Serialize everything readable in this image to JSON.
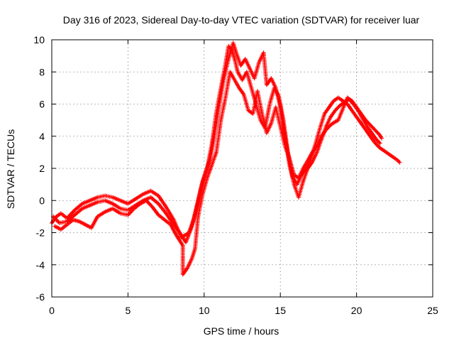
{
  "chart_data": {
    "type": "scatter",
    "title": "Day 316 of 2023, Sidereal Day-to-day VTEC variation (SDTVAR) for receiver luar",
    "xlabel": "GPS time / hours",
    "ylabel": "SDTVAR / TECUs",
    "xlim": [
      0,
      25
    ],
    "ylim": [
      -6,
      10
    ],
    "xticks": [
      0,
      5,
      10,
      15,
      20,
      25
    ],
    "yticks": [
      -6,
      -4,
      -2,
      0,
      2,
      4,
      6,
      8,
      10
    ],
    "grid": true,
    "marker": "+",
    "color": "#ff0000",
    "series": [
      {
        "values": [
          [
            0.0,
            -1.4
          ],
          [
            0.3,
            -1.0
          ],
          [
            0.6,
            -0.8
          ],
          [
            1.0,
            -1.1
          ],
          [
            1.5,
            -0.6
          ],
          [
            2.0,
            -0.2
          ],
          [
            2.5,
            0.0
          ],
          [
            3.0,
            0.2
          ],
          [
            3.5,
            0.3
          ],
          [
            4.0,
            0.2
          ],
          [
            4.5,
            0.0
          ],
          [
            5.0,
            -0.2
          ],
          [
            5.5,
            0.1
          ],
          [
            6.0,
            0.4
          ],
          [
            6.5,
            0.6
          ],
          [
            7.0,
            0.3
          ],
          [
            7.5,
            -0.4
          ],
          [
            8.0,
            -1.2
          ],
          [
            8.5,
            -2.3
          ],
          [
            9.0,
            -2.0
          ],
          [
            9.3,
            -1.2
          ],
          [
            9.6,
            0.0
          ],
          [
            9.9,
            1.2
          ],
          [
            10.2,
            2.0
          ],
          [
            10.5,
            3.5
          ],
          [
            10.8,
            5.5
          ],
          [
            11.1,
            7.0
          ],
          [
            11.4,
            8.5
          ],
          [
            11.6,
            9.6
          ],
          [
            11.8,
            9.4
          ],
          [
            12.0,
            8.8
          ],
          [
            12.2,
            8.0
          ],
          [
            12.5,
            7.5
          ],
          [
            12.8,
            8.0
          ],
          [
            13.1,
            7.0
          ],
          [
            13.4,
            6.0
          ],
          [
            13.7,
            5.0
          ],
          [
            14.0,
            4.5
          ],
          [
            14.3,
            6.0
          ],
          [
            14.6,
            7.0
          ],
          [
            14.9,
            6.5
          ],
          [
            15.2,
            5.0
          ],
          [
            15.5,
            3.0
          ],
          [
            15.8,
            1.5
          ],
          [
            16.1,
            1.0
          ],
          [
            16.4,
            1.6
          ],
          [
            16.7,
            2.0
          ],
          [
            17.0,
            2.6
          ],
          [
            17.3,
            3.5
          ],
          [
            17.6,
            4.5
          ],
          [
            17.9,
            5.4
          ],
          [
            18.2,
            5.8
          ],
          [
            18.5,
            6.2
          ],
          [
            18.8,
            6.4
          ],
          [
            19.1,
            6.2
          ],
          [
            19.4,
            6.0
          ],
          [
            19.7,
            5.6
          ],
          [
            20.0,
            5.2
          ],
          [
            20.3,
            4.8
          ],
          [
            20.6,
            4.4
          ],
          [
            20.9,
            4.0
          ],
          [
            21.2,
            3.6
          ],
          [
            21.5,
            3.3
          ],
          [
            21.8,
            3.1
          ],
          [
            22.1,
            2.9
          ],
          [
            22.4,
            2.7
          ],
          [
            22.7,
            2.5
          ],
          [
            22.9,
            2.3
          ]
        ]
      },
      {
        "values": [
          [
            0.1,
            -1.0
          ],
          [
            0.5,
            -1.4
          ],
          [
            1.0,
            -1.3
          ],
          [
            1.5,
            -0.9
          ],
          [
            2.0,
            -0.5
          ],
          [
            2.5,
            -0.3
          ],
          [
            3.0,
            -0.1
          ],
          [
            3.5,
            0.0
          ],
          [
            4.0,
            -0.2
          ],
          [
            4.5,
            -0.5
          ],
          [
            5.0,
            -0.6
          ],
          [
            5.5,
            -0.3
          ],
          [
            6.0,
            0.0
          ],
          [
            6.5,
            0.2
          ],
          [
            7.0,
            -0.2
          ],
          [
            7.5,
            -0.8
          ],
          [
            8.0,
            -1.5
          ],
          [
            8.4,
            -2.0
          ],
          [
            8.8,
            -2.6
          ],
          [
            9.2,
            -1.6
          ],
          [
            9.5,
            -0.5
          ],
          [
            9.8,
            0.8
          ],
          [
            10.1,
            1.8
          ],
          [
            10.4,
            2.6
          ],
          [
            10.7,
            4.2
          ],
          [
            11.0,
            6.0
          ],
          [
            11.3,
            7.6
          ],
          [
            11.6,
            8.8
          ],
          [
            11.9,
            9.8
          ],
          [
            12.1,
            9.2
          ],
          [
            12.4,
            8.4
          ],
          [
            12.7,
            8.8
          ],
          [
            13.0,
            8.2
          ],
          [
            13.3,
            7.6
          ],
          [
            13.6,
            8.6
          ],
          [
            13.9,
            9.2
          ],
          [
            14.1,
            7.2
          ],
          [
            14.4,
            7.6
          ],
          [
            14.7,
            7.0
          ],
          [
            15.0,
            5.8
          ],
          [
            15.3,
            4.0
          ],
          [
            15.6,
            2.2
          ],
          [
            15.9,
            1.0
          ],
          [
            16.2,
            0.2
          ],
          [
            16.5,
            1.2
          ],
          [
            16.8,
            2.0
          ],
          [
            17.1,
            2.4
          ],
          [
            17.4,
            3.0
          ],
          [
            17.7,
            3.8
          ],
          [
            18.0,
            4.6
          ],
          [
            18.3,
            5.2
          ],
          [
            18.6,
            5.6
          ],
          [
            18.9,
            5.9
          ],
          [
            19.2,
            6.1
          ],
          [
            19.5,
            6.3
          ],
          [
            19.8,
            6.0
          ],
          [
            20.1,
            5.6
          ],
          [
            20.4,
            5.1
          ],
          [
            20.7,
            4.6
          ],
          [
            21.0,
            4.2
          ],
          [
            21.3,
            3.8
          ],
          [
            21.6,
            3.5
          ]
        ]
      },
      {
        "values": [
          [
            0.2,
            -1.6
          ],
          [
            0.6,
            -1.8
          ],
          [
            1.0,
            -1.5
          ],
          [
            1.4,
            -1.2
          ],
          [
            1.8,
            -1.3
          ],
          [
            2.2,
            -1.5
          ],
          [
            2.6,
            -1.7
          ],
          [
            3.0,
            -1.0
          ],
          [
            3.5,
            -0.7
          ],
          [
            4.0,
            -0.5
          ],
          [
            4.5,
            -0.8
          ],
          [
            5.0,
            -0.9
          ],
          [
            5.4,
            -0.5
          ],
          [
            5.8,
            -0.2
          ],
          [
            6.2,
            0.0
          ],
          [
            6.6,
            -0.4
          ],
          [
            7.0,
            -0.9
          ],
          [
            7.4,
            -1.2
          ],
          [
            7.8,
            -1.5
          ],
          [
            8.2,
            -2.2
          ],
          [
            8.6,
            -2.8
          ],
          [
            8.6,
            -4.6
          ],
          [
            8.9,
            -4.2
          ],
          [
            9.2,
            -3.6
          ],
          [
            9.4,
            -3.0
          ],
          [
            9.6,
            -1.0
          ],
          [
            9.9,
            0.4
          ],
          [
            10.2,
            1.4
          ],
          [
            10.5,
            2.2
          ],
          [
            10.8,
            3.0
          ],
          [
            11.1,
            5.0
          ],
          [
            11.4,
            6.4
          ],
          [
            11.7,
            8.0
          ],
          [
            12.0,
            7.5
          ],
          [
            12.3,
            7.0
          ],
          [
            12.6,
            6.6
          ],
          [
            12.9,
            5.6
          ],
          [
            13.2,
            5.4
          ],
          [
            13.5,
            6.8
          ],
          [
            13.8,
            5.4
          ],
          [
            14.1,
            4.2
          ],
          [
            14.4,
            4.8
          ],
          [
            14.7,
            5.8
          ],
          [
            15.0,
            4.6
          ],
          [
            15.3,
            3.4
          ],
          [
            15.6,
            2.6
          ],
          [
            15.9,
            1.6
          ],
          [
            16.2,
            1.4
          ],
          [
            16.5,
            2.0
          ],
          [
            16.8,
            2.5
          ],
          [
            17.1,
            3.0
          ],
          [
            17.4,
            3.4
          ],
          [
            17.7,
            4.0
          ],
          [
            18.0,
            4.4
          ],
          [
            18.3,
            4.7
          ],
          [
            18.6,
            4.9
          ],
          [
            18.8,
            5.0
          ],
          [
            19.4,
            6.4
          ],
          [
            19.7,
            6.2
          ],
          [
            20.0,
            5.8
          ],
          [
            20.3,
            5.4
          ],
          [
            20.6,
            5.0
          ],
          [
            20.9,
            4.7
          ],
          [
            21.2,
            4.4
          ],
          [
            21.5,
            4.1
          ],
          [
            21.7,
            3.8
          ]
        ]
      }
    ]
  }
}
